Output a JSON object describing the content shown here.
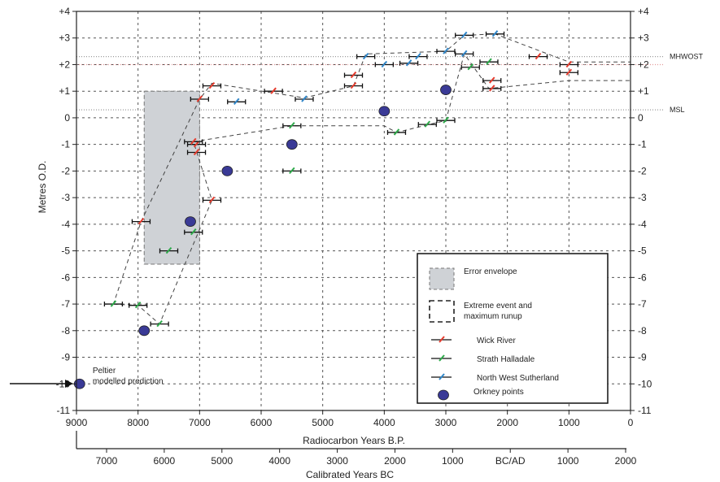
{
  "chart_data": {
    "type": "scatter",
    "title": "",
    "ylabel": "Metres O.D.",
    "xlabel": "Radiocarbon Years B.P.",
    "x2label": "Calibrated Years BC",
    "xlim": [
      9000,
      0
    ],
    "ylim": [
      -11,
      4
    ],
    "x_ticks": [
      "9000",
      "8000",
      "7000",
      "6000",
      "5000",
      "4000",
      "3000",
      "2000",
      "1000",
      "0"
    ],
    "x2_ticks": [
      "7000",
      "6000",
      "5000",
      "4000",
      "3000",
      "2000",
      "1000",
      "BC/AD",
      "1000",
      "2000"
    ],
    "y_ticks": [
      "+4",
      "+3",
      "+2",
      "+1",
      "0",
      "-1",
      "-2",
      "-3",
      "-4",
      "-5",
      "-6",
      "-7",
      "-8",
      "-9",
      "-10",
      "-11"
    ],
    "grid": true,
    "reference_lines": [
      {
        "label": "MHWOST",
        "y": 2.3
      },
      {
        "label": "",
        "y": 2.0
      },
      {
        "label": "MSL",
        "y": 0.3
      }
    ],
    "error_envelope": {
      "x": [
        7900,
        7000
      ],
      "y": [
        -5.5,
        1.0
      ]
    },
    "series": [
      {
        "name": "Wick River",
        "color": "#e53b2d",
        "points": [
          [
            6800,
            1.2
          ],
          [
            7000,
            0.7
          ],
          [
            7050,
            -1
          ],
          [
            7050,
            -1.3
          ],
          [
            7100,
            -0.9
          ],
          [
            6800,
            -3.1
          ],
          [
            7950,
            -3.9
          ],
          [
            4500,
            1.6
          ],
          [
            4500,
            1.2
          ],
          [
            5800,
            1
          ],
          [
            1500,
            2.3
          ],
          [
            1000,
            2
          ],
          [
            1000,
            1.7
          ],
          [
            2250,
            1.4
          ],
          [
            2250,
            1.1
          ]
        ]
      },
      {
        "name": "Strath Halladale",
        "color": "#2ea84a",
        "points": [
          [
            8400,
            -7
          ],
          [
            8000,
            -7.05
          ],
          [
            7650,
            -7.75
          ],
          [
            7500,
            -5
          ],
          [
            7100,
            -4.3
          ],
          [
            5500,
            -0.3
          ],
          [
            5500,
            -2
          ],
          [
            3800,
            -0.55
          ],
          [
            3300,
            -0.25
          ],
          [
            3000,
            -0.1
          ],
          [
            2600,
            1.9
          ],
          [
            2300,
            2.1
          ]
        ]
      },
      {
        "name": "North West Sutherland",
        "color": "#2f86c9",
        "points": [
          [
            6400,
            0.6
          ],
          [
            5300,
            0.7
          ],
          [
            4300,
            2.3
          ],
          [
            4000,
            2.0
          ],
          [
            3600,
            2.05
          ],
          [
            3450,
            2.3
          ],
          [
            3000,
            2.5
          ],
          [
            2700,
            3.1
          ],
          [
            2200,
            3.15
          ],
          [
            2700,
            2.4
          ]
        ]
      },
      {
        "name": "Orkney points",
        "color": "#3a3a96",
        "points": [
          [
            8950,
            -10
          ],
          [
            7900,
            -8
          ],
          [
            7150,
            -3.9
          ],
          [
            6550,
            -2
          ],
          [
            5500,
            -1
          ],
          [
            4000,
            0.25
          ],
          [
            3000,
            1.05
          ]
        ]
      }
    ],
    "annotations": [
      {
        "text": "Peltier",
        "x": 8500,
        "y": -9.5
      },
      {
        "text": "modelled prediction",
        "x": 8500,
        "y": -9.9
      }
    ],
    "legend": {
      "placement": "bottom-right",
      "entries": [
        "Error envelope",
        "Extreme event and",
        "maximum runup",
        "Wick River",
        "Strath Halladale",
        "North West Sutherland",
        "Orkney points"
      ]
    }
  }
}
